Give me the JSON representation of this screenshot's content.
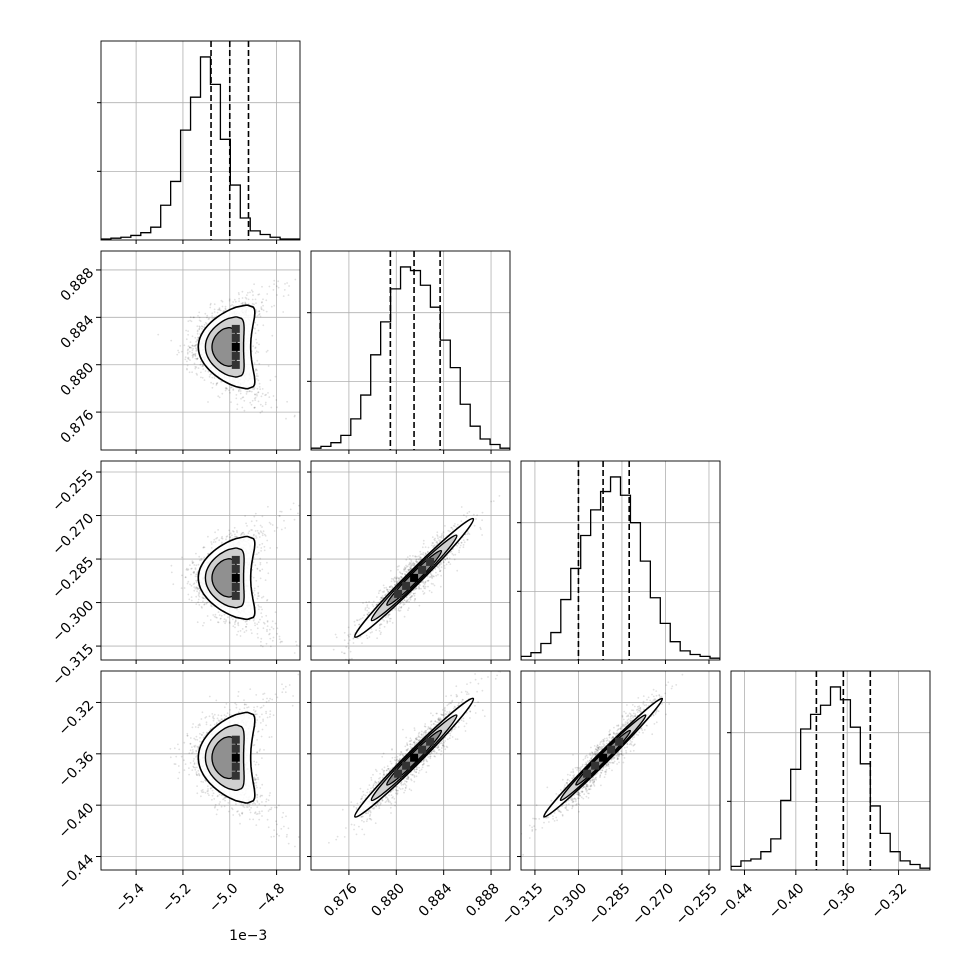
{
  "chart_data": {
    "type": "corner",
    "title": "",
    "parameters": [
      {
        "range": [
          -5.55,
          -4.7
        ],
        "ticks": [
          -5.4,
          -5.2,
          -5.0,
          -4.8
        ],
        "tick_labels": [
          "−5.4",
          "−5.2",
          "−5.0",
          "−4.8"
        ],
        "offset_label": "1e−3",
        "quantiles": [
          -5.08,
          -5.0,
          -4.92
        ],
        "mean": -5.0,
        "sd": 0.075
      },
      {
        "range": [
          0.8728,
          0.8896
        ],
        "ticks": [
          0.876,
          0.88,
          0.884,
          0.888
        ],
        "tick_labels": [
          "0.876",
          "0.880",
          "0.884",
          "0.888"
        ],
        "quantiles": [
          0.8795,
          0.8815,
          0.8837
        ],
        "mean": 0.8815,
        "sd": 0.0021
      },
      {
        "range": [
          -0.3198,
          -0.2512
        ],
        "ticks": [
          -0.315,
          -0.3,
          -0.285,
          -0.27,
          -0.255
        ],
        "tick_labels": [
          "−0.315",
          "−0.300",
          "−0.285",
          "−0.270",
          "−0.255"
        ],
        "quantiles": [
          -0.3,
          -0.2915,
          -0.2825
        ],
        "mean": -0.2915,
        "sd": 0.0085
      },
      {
        "range": [
          -0.4505,
          -0.2955
        ],
        "ticks": [
          -0.44,
          -0.4,
          -0.36,
          -0.32
        ],
        "tick_labels": [
          "−0.44",
          "−0.40",
          "−0.36",
          "−0.32"
        ],
        "quantiles": [
          -0.384,
          -0.363,
          -0.342
        ],
        "mean": -0.363,
        "sd": 0.021
      }
    ],
    "correlations": [
      [
        1,
        0,
        0,
        0
      ],
      [
        0,
        1,
        0.93,
        0.93
      ],
      [
        0,
        0.93,
        1,
        0.95
      ],
      [
        0,
        0.93,
        0.95,
        1
      ]
    ],
    "histograms": [
      [
        0.005,
        0.01,
        0.015,
        0.025,
        0.04,
        0.07,
        0.19,
        0.32,
        0.6,
        0.78,
        1.0,
        0.85,
        0.55,
        0.3,
        0.12,
        0.05,
        0.03,
        0.015,
        0.005,
        0.005
      ],
      [
        0.01,
        0.02,
        0.04,
        0.08,
        0.17,
        0.3,
        0.52,
        0.7,
        0.88,
        1.0,
        0.98,
        0.9,
        0.78,
        0.6,
        0.45,
        0.25,
        0.13,
        0.06,
        0.03,
        0.01
      ],
      [
        0.02,
        0.04,
        0.09,
        0.15,
        0.33,
        0.5,
        0.68,
        0.82,
        0.92,
        1.0,
        0.9,
        0.75,
        0.54,
        0.34,
        0.2,
        0.1,
        0.05,
        0.03,
        0.02,
        0.01
      ],
      [
        0.02,
        0.05,
        0.06,
        0.1,
        0.17,
        0.38,
        0.55,
        0.77,
        0.85,
        0.9,
        1.0,
        0.93,
        0.78,
        0.58,
        0.35,
        0.2,
        0.1,
        0.05,
        0.03,
        0.01
      ]
    ],
    "grid": true,
    "legend": "none"
  }
}
